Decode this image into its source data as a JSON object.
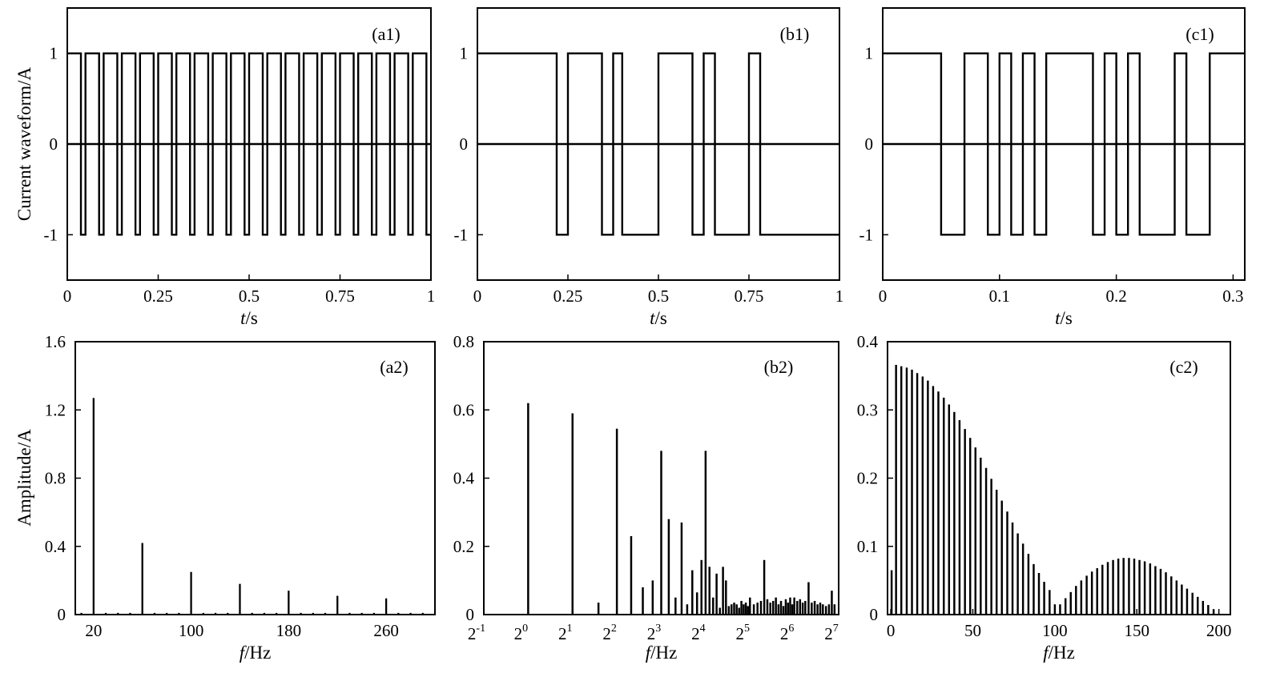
{
  "chart_data": [
    {
      "id": "a1",
      "type": "line",
      "panel_label": "(a1)",
      "ylabel": "Current waveform/A",
      "xlabel_italic": "t",
      "xlabel_unit": "/s",
      "xlim": [
        0,
        1
      ],
      "ylim": [
        -1.5,
        1.5
      ],
      "xticks": [
        0,
        0.25,
        0.5,
        0.75,
        1
      ],
      "xtick_labels": [
        "0",
        "0.25",
        "0.5",
        "0.75",
        "1"
      ],
      "yticks": [
        1,
        0,
        -1
      ],
      "ytick_labels": [
        "1",
        "0",
        "-1"
      ],
      "zero_line": true,
      "waveform": {
        "kind": "bipolar-square",
        "start_level": 1,
        "switch_times": [
          0.0375,
          0.05,
          0.0875,
          0.1,
          0.1375,
          0.15,
          0.1875,
          0.2,
          0.2375,
          0.25,
          0.2875,
          0.3,
          0.3375,
          0.35,
          0.3875,
          0.4,
          0.4375,
          0.45,
          0.4875,
          0.5,
          0.5375,
          0.55,
          0.5875,
          0.6,
          0.6375,
          0.65,
          0.6875,
          0.7,
          0.7375,
          0.75,
          0.7875,
          0.8,
          0.8375,
          0.85,
          0.8875,
          0.9,
          0.9375,
          0.95,
          0.9875
        ],
        "end_time": 1
      }
    },
    {
      "id": "b1",
      "type": "line",
      "panel_label": "(b1)",
      "ylabel": "",
      "xlabel_italic": "t",
      "xlabel_unit": "/s",
      "xlim": [
        0,
        1
      ],
      "ylim": [
        -1.5,
        1.5
      ],
      "xticks": [
        0,
        0.25,
        0.5,
        0.75,
        1
      ],
      "xtick_labels": [
        "0",
        "0.25",
        "0.5",
        "0.75",
        "1"
      ],
      "yticks": [
        1,
        0,
        -1
      ],
      "ytick_labels": [
        "1",
        "0",
        "-1"
      ],
      "zero_line": true,
      "waveform": {
        "kind": "bipolar-square",
        "start_level": 1,
        "switch_times": [
          0.219,
          0.25,
          0.344,
          0.375,
          0.4,
          0.5,
          0.594,
          0.625,
          0.656,
          0.75,
          0.781
        ],
        "end_time": 1
      }
    },
    {
      "id": "c1",
      "type": "line",
      "panel_label": "(c1)",
      "ylabel": "",
      "xlabel_italic": "t",
      "xlabel_unit": "/s",
      "xlim": [
        0,
        0.31
      ],
      "ylim": [
        -1.5,
        1.5
      ],
      "xticks": [
        0,
        0.1,
        0.2,
        0.3
      ],
      "xtick_labels": [
        "0",
        "0.1",
        "0.2",
        "0.3"
      ],
      "yticks": [
        1,
        0,
        -1
      ],
      "ytick_labels": [
        "1",
        "0",
        "-1"
      ],
      "zero_line": true,
      "waveform": {
        "kind": "bipolar-square",
        "start_level": 1,
        "switch_times": [
          0.05,
          0.07,
          0.09,
          0.1,
          0.11,
          0.12,
          0.13,
          0.14,
          0.18,
          0.19,
          0.2,
          0.21,
          0.22,
          0.25,
          0.26,
          0.28
        ],
        "end_time": 0.31
      }
    },
    {
      "id": "a2",
      "type": "bar",
      "panel_label": "(a2)",
      "ylabel": "Amplitude/A",
      "xlabel_italic": "f",
      "xlabel_unit": "/Hz",
      "xscale": "linear",
      "xlim": [
        5,
        300
      ],
      "ylim": [
        0,
        1.6
      ],
      "xticks": [
        20,
        100,
        180,
        260
      ],
      "xtick_labels": [
        "20",
        "100",
        "180",
        "260"
      ],
      "yticks": [
        0,
        0.4,
        0.8,
        1.2,
        1.6
      ],
      "ytick_labels": [
        "0",
        "0.4",
        "0.8",
        "1.2",
        "1.6"
      ],
      "bar_width": 1.5,
      "bars": [
        {
          "x": 20,
          "y": 1.27
        },
        {
          "x": 60,
          "y": 0.42
        },
        {
          "x": 100,
          "y": 0.25
        },
        {
          "x": 140,
          "y": 0.18
        },
        {
          "x": 180,
          "y": 0.14
        },
        {
          "x": 220,
          "y": 0.11
        },
        {
          "x": 260,
          "y": 0.095
        },
        {
          "x": 10,
          "y": 0.01
        },
        {
          "x": 30,
          "y": 0.01
        },
        {
          "x": 40,
          "y": 0.01
        },
        {
          "x": 50,
          "y": 0.01
        },
        {
          "x": 70,
          "y": 0.01
        },
        {
          "x": 80,
          "y": 0.01
        },
        {
          "x": 90,
          "y": 0.01
        },
        {
          "x": 110,
          "y": 0.01
        },
        {
          "x": 120,
          "y": 0.01
        },
        {
          "x": 130,
          "y": 0.01
        },
        {
          "x": 150,
          "y": 0.01
        },
        {
          "x": 160,
          "y": 0.01
        },
        {
          "x": 170,
          "y": 0.01
        },
        {
          "x": 190,
          "y": 0.01
        },
        {
          "x": 200,
          "y": 0.01
        },
        {
          "x": 210,
          "y": 0.01
        },
        {
          "x": 230,
          "y": 0.01
        },
        {
          "x": 240,
          "y": 0.01
        },
        {
          "x": 250,
          "y": 0.01
        },
        {
          "x": 270,
          "y": 0.01
        },
        {
          "x": 280,
          "y": 0.01
        },
        {
          "x": 290,
          "y": 0.01
        }
      ]
    },
    {
      "id": "b2",
      "type": "bar",
      "panel_label": "(b2)",
      "ylabel": "",
      "xlabel_italic": "f",
      "xlabel_unit": "/Hz",
      "xscale": "log2",
      "xlim": [
        0.5,
        128
      ],
      "ylim": [
        0,
        0.8
      ],
      "xticks": [
        0.5,
        1,
        2,
        4,
        8,
        16,
        32,
        64,
        128
      ],
      "xtick_labels": [
        {
          "base": "2",
          "exp": "-1"
        },
        {
          "base": "2",
          "exp": "0"
        },
        {
          "base": "2",
          "exp": "1"
        },
        {
          "base": "2",
          "exp": "2"
        },
        {
          "base": "2",
          "exp": "3"
        },
        {
          "base": "2",
          "exp": "4"
        },
        {
          "base": "2",
          "exp": "5"
        },
        {
          "base": "2",
          "exp": "6"
        },
        {
          "base": "2",
          "exp": "7"
        }
      ],
      "yticks": [
        0,
        0.2,
        0.4,
        0.6,
        0.8
      ],
      "ytick_labels": [
        "0",
        "0.2",
        "0.4",
        "0.6",
        "0.8"
      ],
      "bar_width_log2": 0.045,
      "bars": [
        {
          "x": 1,
          "y": 0.62
        },
        {
          "x": 2,
          "y": 0.59
        },
        {
          "x": 3,
          "y": 0.035
        },
        {
          "x": 4,
          "y": 0.545
        },
        {
          "x": 5,
          "y": 0.23
        },
        {
          "x": 6,
          "y": 0.08
        },
        {
          "x": 7,
          "y": 0.1
        },
        {
          "x": 8,
          "y": 0.48
        },
        {
          "x": 9,
          "y": 0.28
        },
        {
          "x": 10,
          "y": 0.05
        },
        {
          "x": 11,
          "y": 0.27
        },
        {
          "x": 12,
          "y": 0.03
        },
        {
          "x": 13,
          "y": 0.13
        },
        {
          "x": 14,
          "y": 0.065
        },
        {
          "x": 15,
          "y": 0.16
        },
        {
          "x": 16,
          "y": 0.48
        },
        {
          "x": 17,
          "y": 0.14
        },
        {
          "x": 18,
          "y": 0.05
        },
        {
          "x": 19,
          "y": 0.12
        },
        {
          "x": 20,
          "y": 0.02
        },
        {
          "x": 21,
          "y": 0.14
        },
        {
          "x": 22,
          "y": 0.1
        },
        {
          "x": 23,
          "y": 0.025
        },
        {
          "x": 24,
          "y": 0.03
        },
        {
          "x": 25,
          "y": 0.035
        },
        {
          "x": 26,
          "y": 0.03
        },
        {
          "x": 27,
          "y": 0.02
        },
        {
          "x": 28,
          "y": 0.04
        },
        {
          "x": 29,
          "y": 0.03
        },
        {
          "x": 30,
          "y": 0.035
        },
        {
          "x": 31,
          "y": 0.025
        },
        {
          "x": 32,
          "y": 0.05
        },
        {
          "x": 34,
          "y": 0.03
        },
        {
          "x": 36,
          "y": 0.035
        },
        {
          "x": 38,
          "y": 0.04
        },
        {
          "x": 40,
          "y": 0.16
        },
        {
          "x": 42,
          "y": 0.045
        },
        {
          "x": 44,
          "y": 0.035
        },
        {
          "x": 46,
          "y": 0.04
        },
        {
          "x": 48,
          "y": 0.05
        },
        {
          "x": 50,
          "y": 0.03
        },
        {
          "x": 52,
          "y": 0.04
        },
        {
          "x": 54,
          "y": 0.025
        },
        {
          "x": 56,
          "y": 0.045
        },
        {
          "x": 58,
          "y": 0.035
        },
        {
          "x": 60,
          "y": 0.05
        },
        {
          "x": 62,
          "y": 0.03
        },
        {
          "x": 64,
          "y": 0.05
        },
        {
          "x": 67,
          "y": 0.04
        },
        {
          "x": 70,
          "y": 0.045
        },
        {
          "x": 73,
          "y": 0.035
        },
        {
          "x": 76,
          "y": 0.04
        },
        {
          "x": 80,
          "y": 0.095
        },
        {
          "x": 84,
          "y": 0.035
        },
        {
          "x": 88,
          "y": 0.04
        },
        {
          "x": 92,
          "y": 0.03
        },
        {
          "x": 96,
          "y": 0.035
        },
        {
          "x": 100,
          "y": 0.03
        },
        {
          "x": 105,
          "y": 0.025
        },
        {
          "x": 110,
          "y": 0.03
        },
        {
          "x": 115,
          "y": 0.07
        },
        {
          "x": 120,
          "y": 0.03
        }
      ]
    },
    {
      "id": "c2",
      "type": "bar",
      "panel_label": "(c2)",
      "ylabel": "",
      "xlabel_italic": "f",
      "xlabel_unit": "/Hz",
      "xscale": "linear",
      "xlim": [
        -2,
        207
      ],
      "ylim": [
        0,
        0.4
      ],
      "xticks": [
        0,
        50,
        100,
        150,
        200
      ],
      "xtick_labels": [
        "0",
        "50",
        "100",
        "150",
        "200"
      ],
      "yticks": [
        0,
        0.1,
        0.2,
        0.3,
        0.4
      ],
      "ytick_labels": [
        "0",
        "0.1",
        "0.2",
        "0.3",
        "0.4"
      ],
      "bar_width": 1.2,
      "bars": [
        {
          "x": 0.5,
          "y": 0.065
        },
        {
          "x": 3.2,
          "y": 0.366
        },
        {
          "x": 6.4,
          "y": 0.364
        },
        {
          "x": 9.7,
          "y": 0.362
        },
        {
          "x": 12.9,
          "y": 0.359
        },
        {
          "x": 16.1,
          "y": 0.354
        },
        {
          "x": 19.4,
          "y": 0.349
        },
        {
          "x": 22.6,
          "y": 0.343
        },
        {
          "x": 25.8,
          "y": 0.335
        },
        {
          "x": 29.0,
          "y": 0.327
        },
        {
          "x": 32.3,
          "y": 0.318
        },
        {
          "x": 35.5,
          "y": 0.308
        },
        {
          "x": 38.7,
          "y": 0.297
        },
        {
          "x": 41.9,
          "y": 0.285
        },
        {
          "x": 45.2,
          "y": 0.272
        },
        {
          "x": 48.4,
          "y": 0.259
        },
        {
          "x": 51.6,
          "y": 0.245
        },
        {
          "x": 54.8,
          "y": 0.23
        },
        {
          "x": 58.1,
          "y": 0.215
        },
        {
          "x": 61.3,
          "y": 0.199
        },
        {
          "x": 64.5,
          "y": 0.183
        },
        {
          "x": 67.7,
          "y": 0.167
        },
        {
          "x": 71.0,
          "y": 0.151
        },
        {
          "x": 74.2,
          "y": 0.135
        },
        {
          "x": 77.4,
          "y": 0.119
        },
        {
          "x": 80.6,
          "y": 0.104
        },
        {
          "x": 83.9,
          "y": 0.089
        },
        {
          "x": 87.1,
          "y": 0.074
        },
        {
          "x": 90.3,
          "y": 0.061
        },
        {
          "x": 93.5,
          "y": 0.048
        },
        {
          "x": 96.8,
          "y": 0.036
        },
        {
          "x": 100.0,
          "y": 0.015
        },
        {
          "x": 103.2,
          "y": 0.015
        },
        {
          "x": 106.5,
          "y": 0.024
        },
        {
          "x": 109.7,
          "y": 0.033
        },
        {
          "x": 112.9,
          "y": 0.042
        },
        {
          "x": 116.1,
          "y": 0.05
        },
        {
          "x": 119.4,
          "y": 0.057
        },
        {
          "x": 122.6,
          "y": 0.063
        },
        {
          "x": 125.8,
          "y": 0.068
        },
        {
          "x": 129.0,
          "y": 0.073
        },
        {
          "x": 132.3,
          "y": 0.077
        },
        {
          "x": 135.5,
          "y": 0.08
        },
        {
          "x": 138.7,
          "y": 0.082
        },
        {
          "x": 141.9,
          "y": 0.083
        },
        {
          "x": 145.2,
          "y": 0.083
        },
        {
          "x": 148.4,
          "y": 0.082
        },
        {
          "x": 151.6,
          "y": 0.08
        },
        {
          "x": 154.8,
          "y": 0.078
        },
        {
          "x": 158.1,
          "y": 0.075
        },
        {
          "x": 161.3,
          "y": 0.071
        },
        {
          "x": 164.5,
          "y": 0.067
        },
        {
          "x": 167.7,
          "y": 0.062
        },
        {
          "x": 171.0,
          "y": 0.056
        },
        {
          "x": 174.2,
          "y": 0.05
        },
        {
          "x": 177.4,
          "y": 0.044
        },
        {
          "x": 180.6,
          "y": 0.038
        },
        {
          "x": 183.9,
          "y": 0.032
        },
        {
          "x": 187.1,
          "y": 0.026
        },
        {
          "x": 190.3,
          "y": 0.02
        },
        {
          "x": 193.5,
          "y": 0.014
        },
        {
          "x": 196.8,
          "y": 0.008
        }
      ]
    }
  ]
}
